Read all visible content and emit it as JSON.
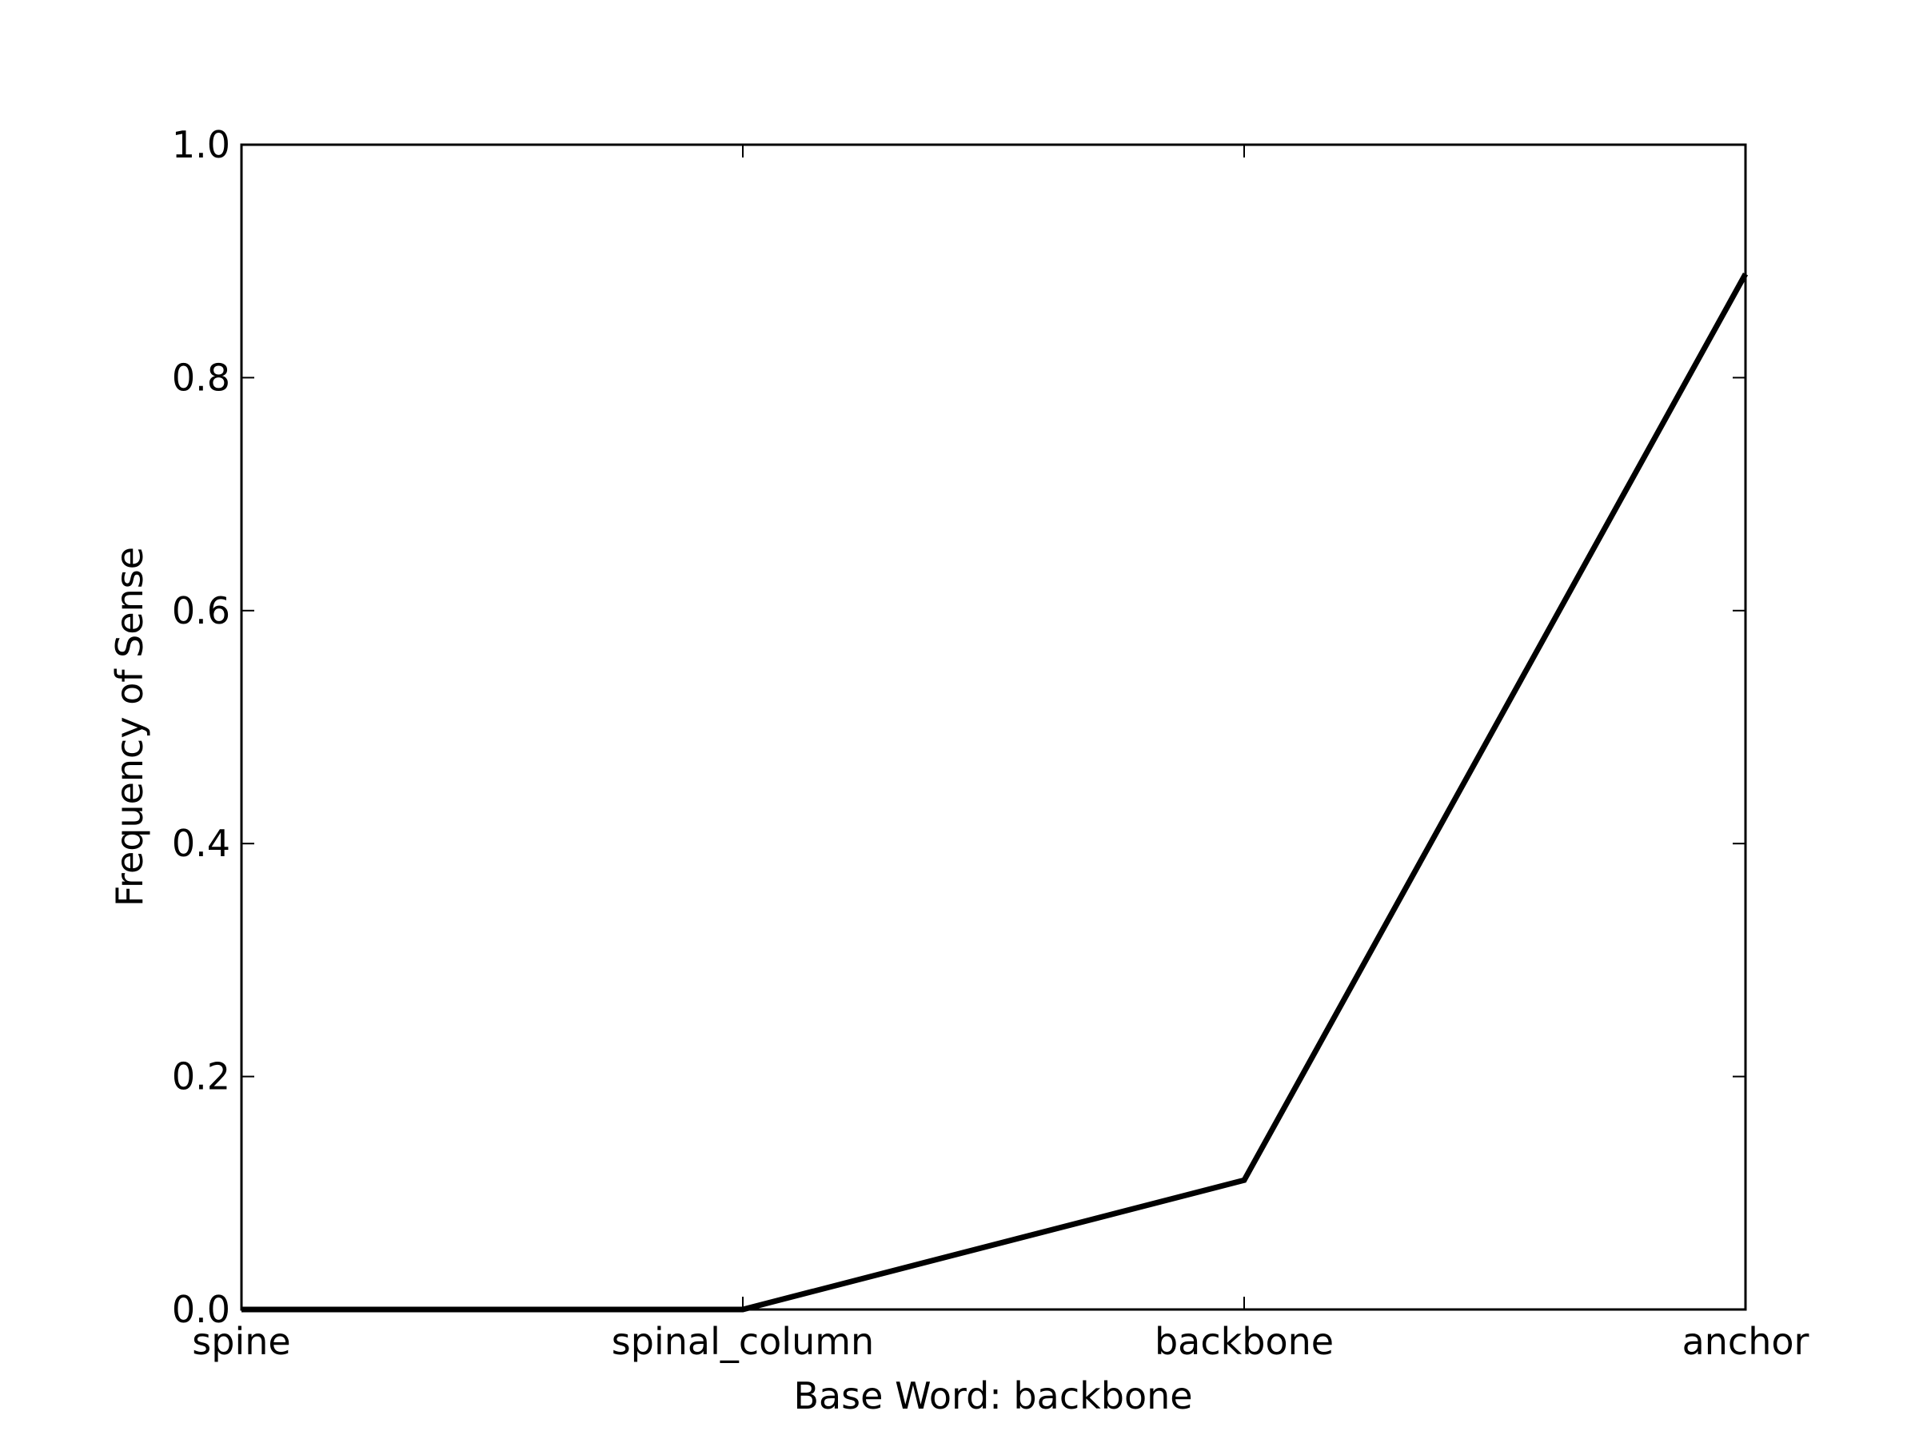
{
  "chart_data": {
    "type": "line",
    "categories": [
      "spine",
      "spinal_column",
      "backbone",
      "anchor"
    ],
    "series": [
      {
        "values": [
          0.0,
          0.0,
          0.111,
          0.889
        ],
        "color": "#000000"
      }
    ],
    "xlabel": "Base Word: backbone",
    "ylabel": "Frequency of Sense",
    "ylim": [
      0.0,
      1.0
    ],
    "yticks": [
      "0.0",
      "0.2",
      "0.4",
      "0.6",
      "0.8",
      "1.0"
    ],
    "grid": false,
    "legend": "none"
  }
}
